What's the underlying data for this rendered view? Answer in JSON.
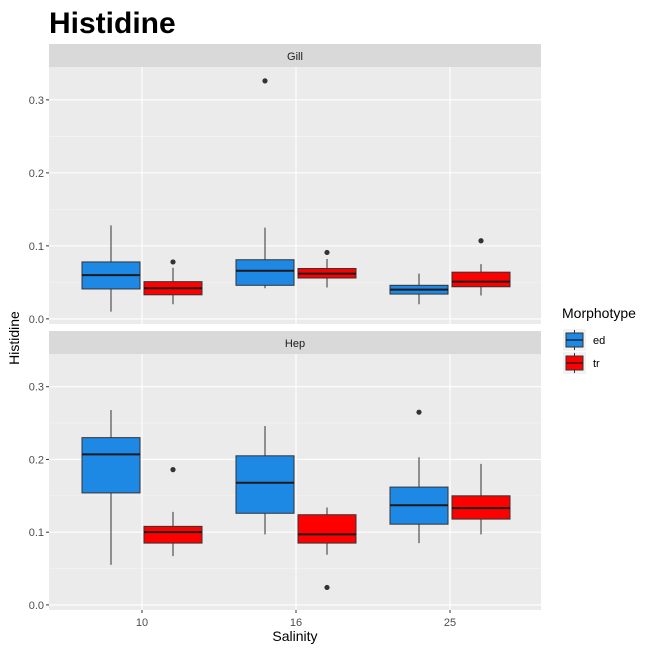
{
  "chart_data": {
    "type": "boxplot",
    "title": "Histidine",
    "xlabel": "Salinity",
    "ylabel": "Histidine",
    "categories": [
      "10",
      "16",
      "25"
    ],
    "ylim": [
      -0.007,
      0.345
    ],
    "yticks": [
      0.0,
      0.1,
      0.2,
      0.3
    ],
    "ytick_labels": [
      "0.0",
      "0.1",
      "0.2",
      "0.3"
    ],
    "legend": {
      "title": "Morphotype",
      "position": "right",
      "entries": [
        {
          "name": "ed",
          "color": "#1E88E5"
        },
        {
          "name": "tr",
          "color": "#FF0000"
        }
      ]
    },
    "panels": [
      {
        "label": "Gill",
        "groups": [
          {
            "category": "10",
            "series": "ed",
            "lower": 0.01,
            "q1": 0.041,
            "median": 0.06,
            "q3": 0.078,
            "upper": 0.128,
            "outliers": []
          },
          {
            "category": "10",
            "series": "tr",
            "lower": 0.02,
            "q1": 0.033,
            "median": 0.042,
            "q3": 0.051,
            "upper": 0.07,
            "outliers": [
              0.078
            ]
          },
          {
            "category": "16",
            "series": "ed",
            "lower": 0.042,
            "q1": 0.046,
            "median": 0.066,
            "q3": 0.081,
            "upper": 0.125,
            "outliers": [
              0.326
            ]
          },
          {
            "category": "16",
            "series": "tr",
            "lower": 0.043,
            "q1": 0.056,
            "median": 0.062,
            "q3": 0.069,
            "upper": 0.082,
            "outliers": [
              0.091
            ]
          },
          {
            "category": "25",
            "series": "ed",
            "lower": 0.02,
            "q1": 0.034,
            "median": 0.04,
            "q3": 0.046,
            "upper": 0.062,
            "outliers": []
          },
          {
            "category": "25",
            "series": "tr",
            "lower": 0.032,
            "q1": 0.044,
            "median": 0.051,
            "q3": 0.064,
            "upper": 0.075,
            "outliers": [
              0.107
            ]
          }
        ]
      },
      {
        "label": "Hep",
        "groups": [
          {
            "category": "10",
            "series": "ed",
            "lower": 0.055,
            "q1": 0.154,
            "median": 0.207,
            "q3": 0.23,
            "upper": 0.268,
            "outliers": []
          },
          {
            "category": "10",
            "series": "tr",
            "lower": 0.067,
            "q1": 0.085,
            "median": 0.1,
            "q3": 0.108,
            "upper": 0.128,
            "outliers": [
              0.186
            ]
          },
          {
            "category": "16",
            "series": "ed",
            "lower": 0.097,
            "q1": 0.126,
            "median": 0.168,
            "q3": 0.205,
            "upper": 0.246,
            "outliers": []
          },
          {
            "category": "16",
            "series": "tr",
            "lower": 0.069,
            "q1": 0.085,
            "median": 0.097,
            "q3": 0.124,
            "upper": 0.134,
            "outliers": [
              0.024
            ]
          },
          {
            "category": "25",
            "series": "ed",
            "lower": 0.085,
            "q1": 0.111,
            "median": 0.137,
            "q3": 0.162,
            "upper": 0.203,
            "outliers": [
              0.265
            ]
          },
          {
            "category": "25",
            "series": "tr",
            "lower": 0.097,
            "q1": 0.118,
            "median": 0.133,
            "q3": 0.15,
            "upper": 0.194,
            "outliers": []
          }
        ]
      }
    ]
  }
}
